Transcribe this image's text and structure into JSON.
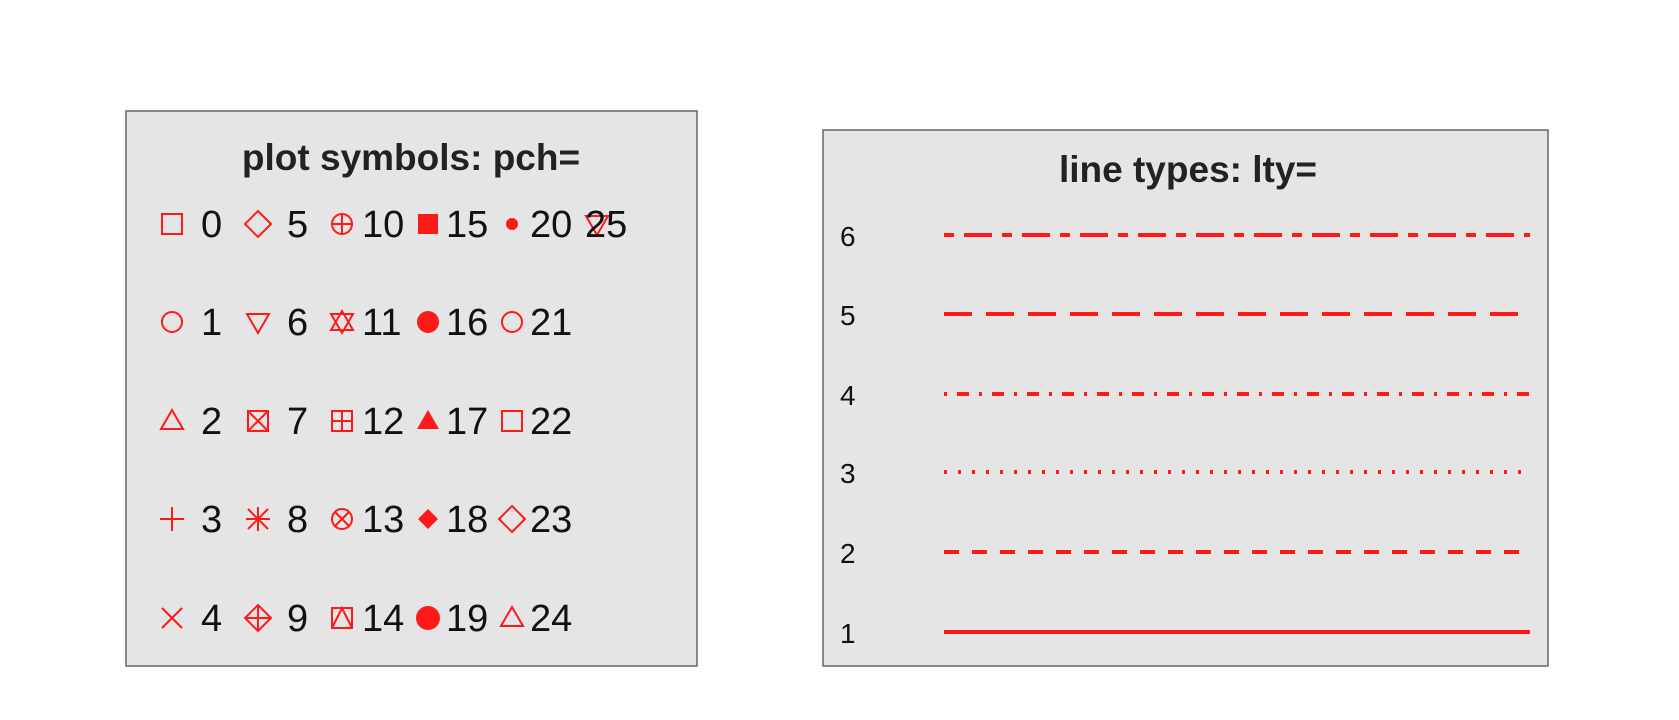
{
  "colors": {
    "panel_bg": "#e5e5e5",
    "panel_border": "#666666",
    "symbol": "#ff1a1a",
    "text": "#111111"
  },
  "symbols_panel": {
    "title": "plot symbols: pch=",
    "columns": [
      [
        {
          "pch": 0,
          "label": "0"
        },
        {
          "pch": 1,
          "label": "1"
        },
        {
          "pch": 2,
          "label": "2"
        },
        {
          "pch": 3,
          "label": "3"
        },
        {
          "pch": 4,
          "label": "4"
        }
      ],
      [
        {
          "pch": 5,
          "label": "5"
        },
        {
          "pch": 6,
          "label": "6"
        },
        {
          "pch": 7,
          "label": "7"
        },
        {
          "pch": 8,
          "label": "8"
        },
        {
          "pch": 9,
          "label": "9"
        }
      ],
      [
        {
          "pch": 10,
          "label": "10"
        },
        {
          "pch": 11,
          "label": "11"
        },
        {
          "pch": 12,
          "label": "12"
        },
        {
          "pch": 13,
          "label": "13"
        },
        {
          "pch": 14,
          "label": "14"
        }
      ],
      [
        {
          "pch": 15,
          "label": "15"
        },
        {
          "pch": 16,
          "label": "16"
        },
        {
          "pch": 17,
          "label": "17"
        },
        {
          "pch": 18,
          "label": "18"
        },
        {
          "pch": 19,
          "label": "19"
        }
      ],
      [
        {
          "pch": 20,
          "label": "20"
        },
        {
          "pch": 21,
          "label": "21"
        },
        {
          "pch": 22,
          "label": "22"
        },
        {
          "pch": 23,
          "label": "23"
        },
        {
          "pch": 24,
          "label": "24"
        }
      ],
      [
        {
          "pch": 25,
          "label": "25"
        }
      ]
    ]
  },
  "lines_panel": {
    "title": "line types: lty=",
    "lines": [
      {
        "lty": 6,
        "label": "6",
        "style": "twodash"
      },
      {
        "lty": 5,
        "label": "5",
        "style": "longdash"
      },
      {
        "lty": 4,
        "label": "4",
        "style": "dotdash"
      },
      {
        "lty": 3,
        "label": "3",
        "style": "dotted"
      },
      {
        "lty": 2,
        "label": "2",
        "style": "dashed"
      },
      {
        "lty": 1,
        "label": "1",
        "style": "solid"
      }
    ]
  }
}
